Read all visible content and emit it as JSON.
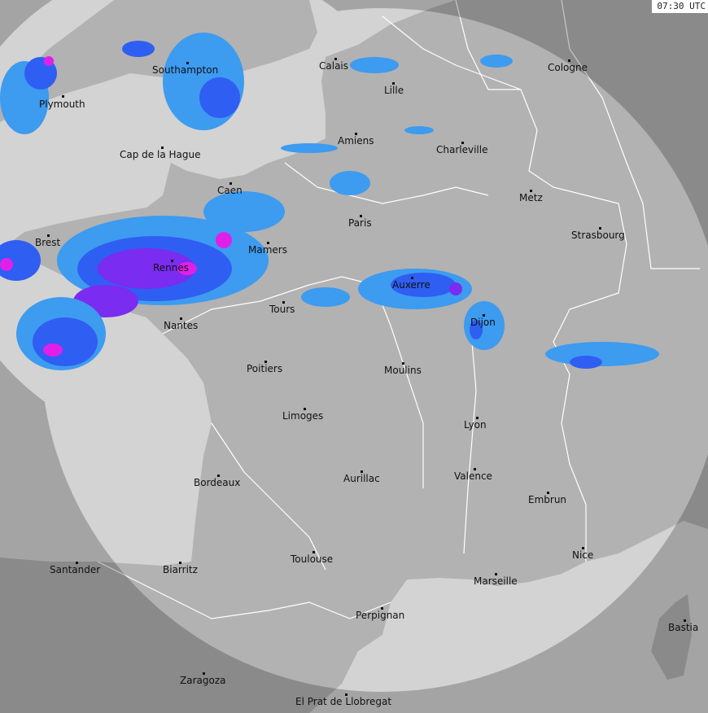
{
  "timestamp": "07:30 UTC",
  "colors": {
    "sea": "#d3d3d3",
    "land": "#b2b2b2",
    "outside_coverage_shade": "#000000",
    "rain_light": "#3d9bf0",
    "rain_moderate": "#2f5ef2",
    "rain_heavy": "#7a2cf0",
    "rain_intense": "#e020e8"
  },
  "cities": [
    "Southampton",
    "Plymouth",
    "Calais",
    "Lille",
    "Cologne",
    "Amiens",
    "Charleville",
    "Cap de la Hague",
    "Caen",
    "Metz",
    "Paris",
    "Strasbourg",
    "Brest",
    "Mamers",
    "Rennes",
    "Auxerre",
    "Tours",
    "Dijon",
    "Nantes",
    "Poitiers",
    "Moulins",
    "Limoges",
    "Lyon",
    "Aurillac",
    "Valence",
    "Bordeaux",
    "Embrun",
    "Nice",
    "Santander",
    "Biarritz",
    "Toulouse",
    "Marseille",
    "Perpignan",
    "Bastia",
    "Zaragoza",
    "El Prat de Llobregat"
  ]
}
